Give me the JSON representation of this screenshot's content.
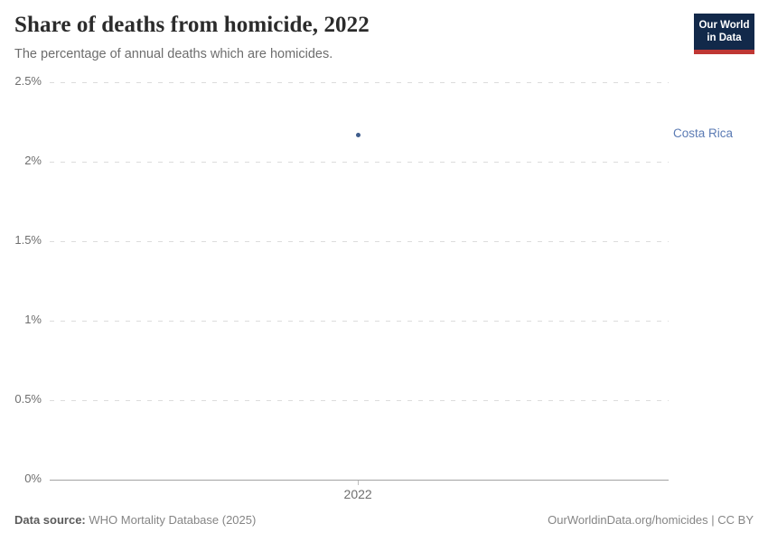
{
  "header": {
    "title": "Share of deaths from homicide, 2022",
    "subtitle": "The percentage of annual deaths which are homicides.",
    "logo": {
      "line1": "Our World",
      "line2": "in Data",
      "bg_color": "#12294a",
      "accent_color": "#bf3734"
    }
  },
  "chart_data": {
    "type": "scatter",
    "title": "Share of deaths from homicide, 2022",
    "subtitle": "The percentage of annual deaths which are homicides.",
    "x": [
      2022
    ],
    "x_ticks": [
      "2022"
    ],
    "series": [
      {
        "name": "Costa Rica",
        "values": [
          2.17
        ]
      }
    ],
    "y_ticks": [
      {
        "label": "0%",
        "value": 0
      },
      {
        "label": "0.5%",
        "value": 0.5
      },
      {
        "label": "1%",
        "value": 1
      },
      {
        "label": "1.5%",
        "value": 1.5
      },
      {
        "label": "2%",
        "value": 2
      },
      {
        "label": "2.5%",
        "value": 2.5
      }
    ],
    "ylim": [
      0,
      2.5
    ],
    "xlabel": "",
    "ylabel": "",
    "grid": "horizontal-dashed",
    "legend_position": "entity-label-right",
    "colors": {
      "point": "#3f5d8c",
      "entity_label": "#5b7bb4",
      "gridline": "#dcdcdc",
      "axis": "#a3a3a3"
    }
  },
  "footer": {
    "source_label": "Data source:",
    "source_value": "WHO Mortality Database (2025)",
    "license": "OurWorldinData.org/homicides | CC BY"
  }
}
